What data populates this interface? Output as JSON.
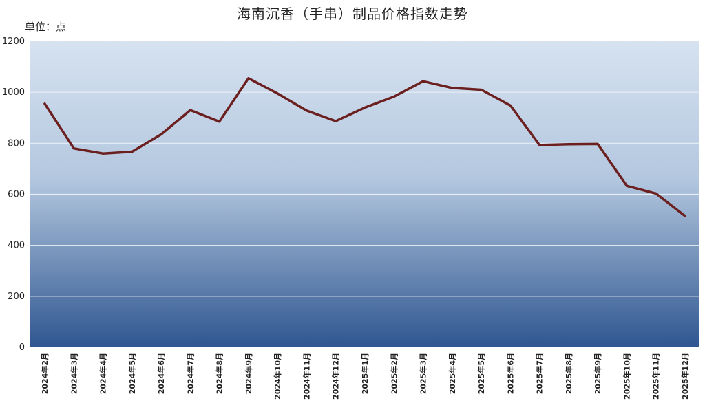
{
  "chart_data": {
    "type": "line",
    "title": "海南沉香（手串）制品价格指数走势",
    "unit_label": "单位：点",
    "ylim": [
      0,
      1200
    ],
    "yticks": [
      0,
      200,
      400,
      600,
      800,
      1000,
      1200
    ],
    "grid": true,
    "categories": [
      "2024年2月",
      "2024年3月",
      "2024年4月",
      "2024年5月",
      "2024年6月",
      "2024年7月",
      "2024年8月",
      "2024年9月",
      "2024年10月",
      "2024年11月",
      "2024年12月",
      "2025年1月",
      "2025年2月",
      "2025年3月",
      "2025年4月",
      "2025年5月",
      "2025年6月",
      "2025年7月",
      "2025年8月",
      "2025年9月",
      "2025年10月",
      "2025年11月",
      "2025年12月"
    ],
    "series": [
      {
        "values": [
          955,
          780,
          760,
          767,
          835,
          930,
          885,
          1055,
          995,
          928,
          887,
          940,
          983,
          1043,
          1017,
          1010,
          948,
          793,
          796,
          797,
          633,
          603,
          515
        ],
        "color": "#6b1f1f"
      }
    ],
    "colors": {
      "background_top": "#d6e2f0",
      "background_bottom": "#2f5690",
      "grid": "#e8eef6",
      "line": "#6b1f1f"
    }
  }
}
